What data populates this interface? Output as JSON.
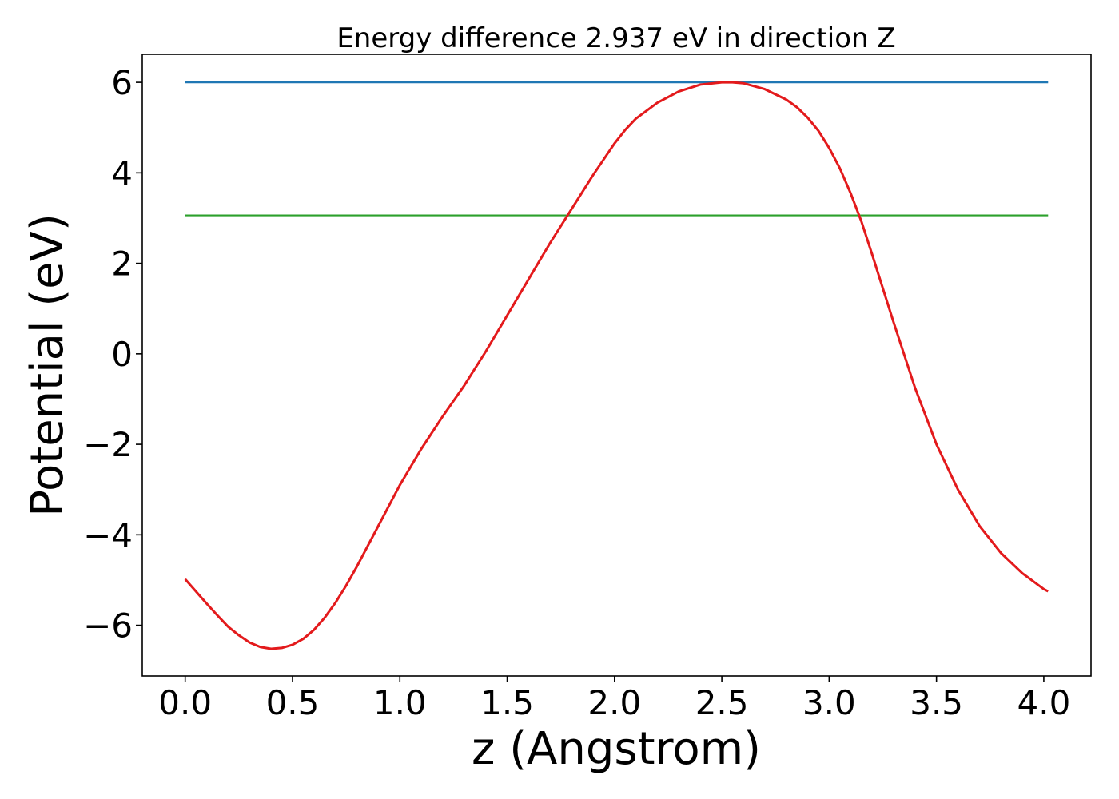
{
  "chart_data": {
    "type": "line",
    "title": "Energy difference 2.937 eV in direction Z",
    "xlabel": "z (Angstrom)",
    "ylabel": "Potential (eV)",
    "xlim": [
      -0.2,
      4.22
    ],
    "ylim": [
      -7.12,
      6.62
    ],
    "xticks": [
      0.0,
      0.5,
      1.0,
      1.5,
      2.0,
      2.5,
      3.0,
      3.5,
      4.0
    ],
    "xtick_labels": [
      "0.0",
      "0.5",
      "1.0",
      "1.5",
      "2.0",
      "2.5",
      "3.0",
      "3.5",
      "4.0"
    ],
    "yticks": [
      -6,
      -4,
      -2,
      0,
      2,
      4,
      6
    ],
    "ytick_labels": [
      "−6",
      "−4",
      "−2",
      "0",
      "2",
      "4",
      "6"
    ],
    "grid": false,
    "series": [
      {
        "color": "#1f77b4",
        "x": [
          0.0,
          4.02
        ],
        "y": [
          6.0,
          6.0
        ]
      },
      {
        "color": "#2ca02c",
        "x": [
          0.0,
          4.02
        ],
        "y": [
          3.06,
          3.06
        ]
      },
      {
        "color": "#e31a1c",
        "x": [
          0.0,
          0.05,
          0.1,
          0.15,
          0.2,
          0.25,
          0.3,
          0.35,
          0.4,
          0.45,
          0.5,
          0.55,
          0.6,
          0.65,
          0.7,
          0.75,
          0.8,
          0.9,
          1.0,
          1.1,
          1.2,
          1.3,
          1.4,
          1.5,
          1.6,
          1.7,
          1.8,
          1.9,
          2.0,
          2.05,
          2.1,
          2.2,
          2.3,
          2.4,
          2.5,
          2.55,
          2.6,
          2.7,
          2.8,
          2.85,
          2.9,
          2.95,
          3.0,
          3.05,
          3.1,
          3.15,
          3.2,
          3.3,
          3.4,
          3.5,
          3.6,
          3.7,
          3.8,
          3.9,
          4.0,
          4.02
        ],
        "y": [
          -4.98,
          -5.25,
          -5.52,
          -5.78,
          -6.03,
          -6.22,
          -6.38,
          -6.48,
          -6.52,
          -6.5,
          -6.43,
          -6.3,
          -6.1,
          -5.83,
          -5.5,
          -5.12,
          -4.7,
          -3.8,
          -2.9,
          -2.1,
          -1.38,
          -0.7,
          0.05,
          0.85,
          1.65,
          2.45,
          3.2,
          3.95,
          4.65,
          4.95,
          5.2,
          5.55,
          5.8,
          5.95,
          6.0,
          6.0,
          5.98,
          5.85,
          5.62,
          5.45,
          5.22,
          4.93,
          4.55,
          4.1,
          3.55,
          2.93,
          2.2,
          0.7,
          -0.75,
          -2.0,
          -3.0,
          -3.8,
          -4.4,
          -4.85,
          -5.2,
          -5.25
        ]
      }
    ]
  }
}
